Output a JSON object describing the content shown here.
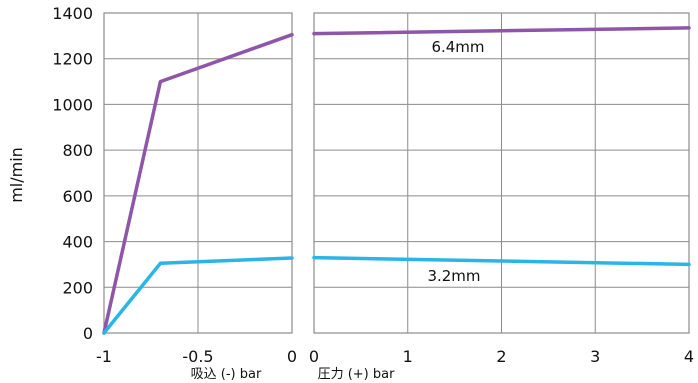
{
  "chart_data": {
    "type": "line",
    "ylabel": "ml/min",
    "ylim": [
      0,
      1400
    ],
    "y_ticks": [
      "0",
      "200",
      "400",
      "600",
      "800",
      "1000",
      "1200",
      "1400"
    ],
    "panels": [
      {
        "id": "left",
        "xlabel": "吸込 (-) bar",
        "xlim": [
          -1,
          0
        ],
        "x_ticks": [
          "-1",
          "-0.5",
          "0"
        ]
      },
      {
        "id": "right",
        "xlabel": "圧力 (+) bar",
        "xlim": [
          0,
          4
        ],
        "x_ticks": [
          "0",
          "1",
          "2",
          "3",
          "4"
        ]
      }
    ],
    "series": [
      {
        "name": "6.4mm",
        "color": "#8e55a8",
        "left_points": [
          [
            -1,
            0
          ],
          [
            -0.7,
            1100
          ],
          [
            0,
            1305
          ]
        ],
        "right_points": [
          [
            0,
            1310
          ],
          [
            4,
            1335
          ]
        ]
      },
      {
        "name": "3.2mm",
        "color": "#29b6e6",
        "left_points": [
          [
            -1,
            0
          ],
          [
            -0.7,
            305
          ],
          [
            0,
            328
          ]
        ],
        "right_points": [
          [
            0,
            330
          ],
          [
            4,
            300
          ]
        ]
      }
    ],
    "grid": true
  }
}
